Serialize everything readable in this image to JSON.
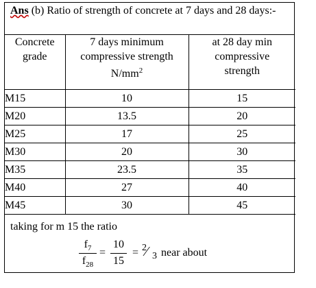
{
  "header": {
    "ans_label": "Ans",
    "question_text": " (b) Ratio of strength of concrete at 7 days and 28 days:-"
  },
  "table": {
    "columns": [
      {
        "line1": "Concrete",
        "line2": "grade",
        "line3": ""
      },
      {
        "line1": "7 days minimum",
        "line2": "compressive strength",
        "line3": "N/mm",
        "sup": "2"
      },
      {
        "line1": "at 28 day min",
        "line2": "compressive",
        "line3": "strength"
      }
    ],
    "rows": [
      {
        "grade": "M15",
        "seven": "10",
        "twenty_eight": "15"
      },
      {
        "grade": "M20",
        "seven": "13.5",
        "twenty_eight": "20"
      },
      {
        "grade": "M25",
        "seven": "17",
        "twenty_eight": "25"
      },
      {
        "grade": "M30",
        "seven": "20",
        "twenty_eight": "30"
      },
      {
        "grade": "M35",
        "seven": "23.5",
        "twenty_eight": "35"
      },
      {
        "grade": "M40",
        "seven": "27",
        "twenty_eight": "40"
      },
      {
        "grade": "M45",
        "seven": "30",
        "twenty_eight": "45"
      }
    ]
  },
  "footer": {
    "intro": "taking for m 15 the ratio",
    "formula": {
      "f_symbol": "f",
      "sub_top": "7",
      "sub_bottom": "28",
      "num": "10",
      "den": "15",
      "equals": "=",
      "result_num": "2",
      "result_slash": "⁄",
      "result_den": "3",
      "suffix": "near about"
    }
  }
}
